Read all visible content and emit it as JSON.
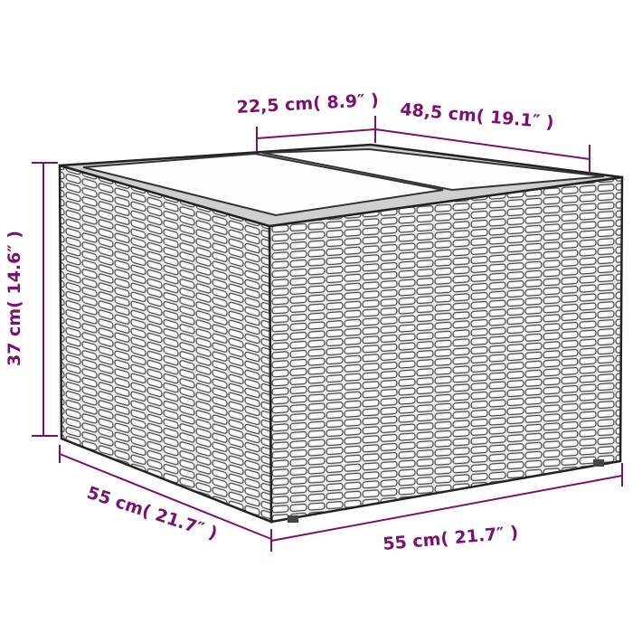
{
  "accent_color": "#7a1070",
  "product_icon": "wicker-storage-box",
  "dimensions": {
    "top_panel_width": "22,5 cm( 8.9″ )",
    "top_depth": "48,5 cm( 19.1″ )",
    "height": "37 cm( 14.6″ )",
    "left_width": "55 cm( 21.7″ )",
    "front_width": "55 cm( 21.7″ )"
  }
}
